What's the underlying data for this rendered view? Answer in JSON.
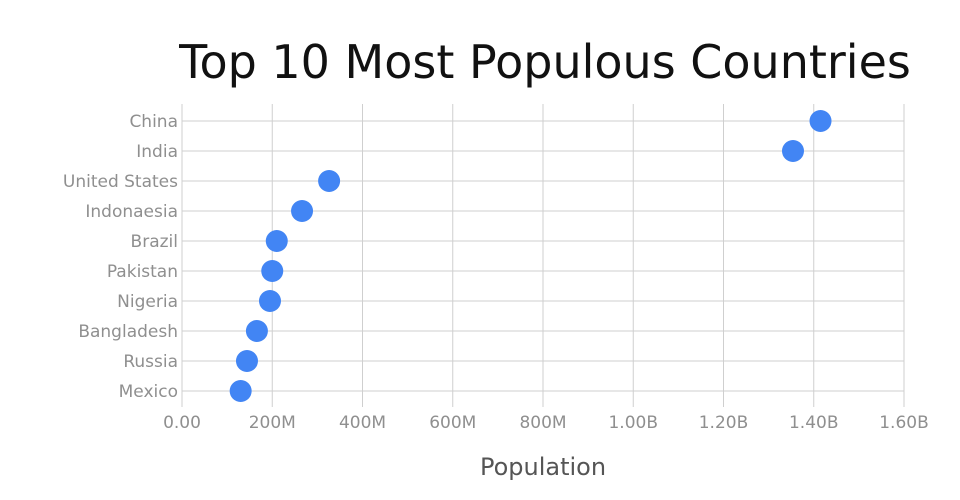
{
  "chart_data": {
    "type": "scatter",
    "title": "Top 10 Most Populous Countries",
    "xlabel": "Population",
    "ylabel": "",
    "xlim": [
      0,
      1600000000
    ],
    "x_ticks": [
      0,
      200000000,
      400000000,
      600000000,
      800000000,
      1000000000,
      1200000000,
      1400000000,
      1600000000
    ],
    "x_tick_labels": [
      "0.00",
      "200M",
      "400M",
      "600M",
      "800M",
      "1.00B",
      "1.20B",
      "1.40B",
      "1.60B"
    ],
    "categories": [
      "China",
      "India",
      "United States",
      "Indonaesia",
      "Brazil",
      "Pakistan",
      "Nigeria",
      "Bangladesh",
      "Russia",
      "Mexico"
    ],
    "values": [
      1415000000,
      1354000000,
      326000000,
      266000000,
      210000000,
      200000000,
      195000000,
      166000000,
      144000000,
      130000000
    ],
    "grid": true,
    "legend": "none",
    "marker_color": "#4285f4"
  }
}
